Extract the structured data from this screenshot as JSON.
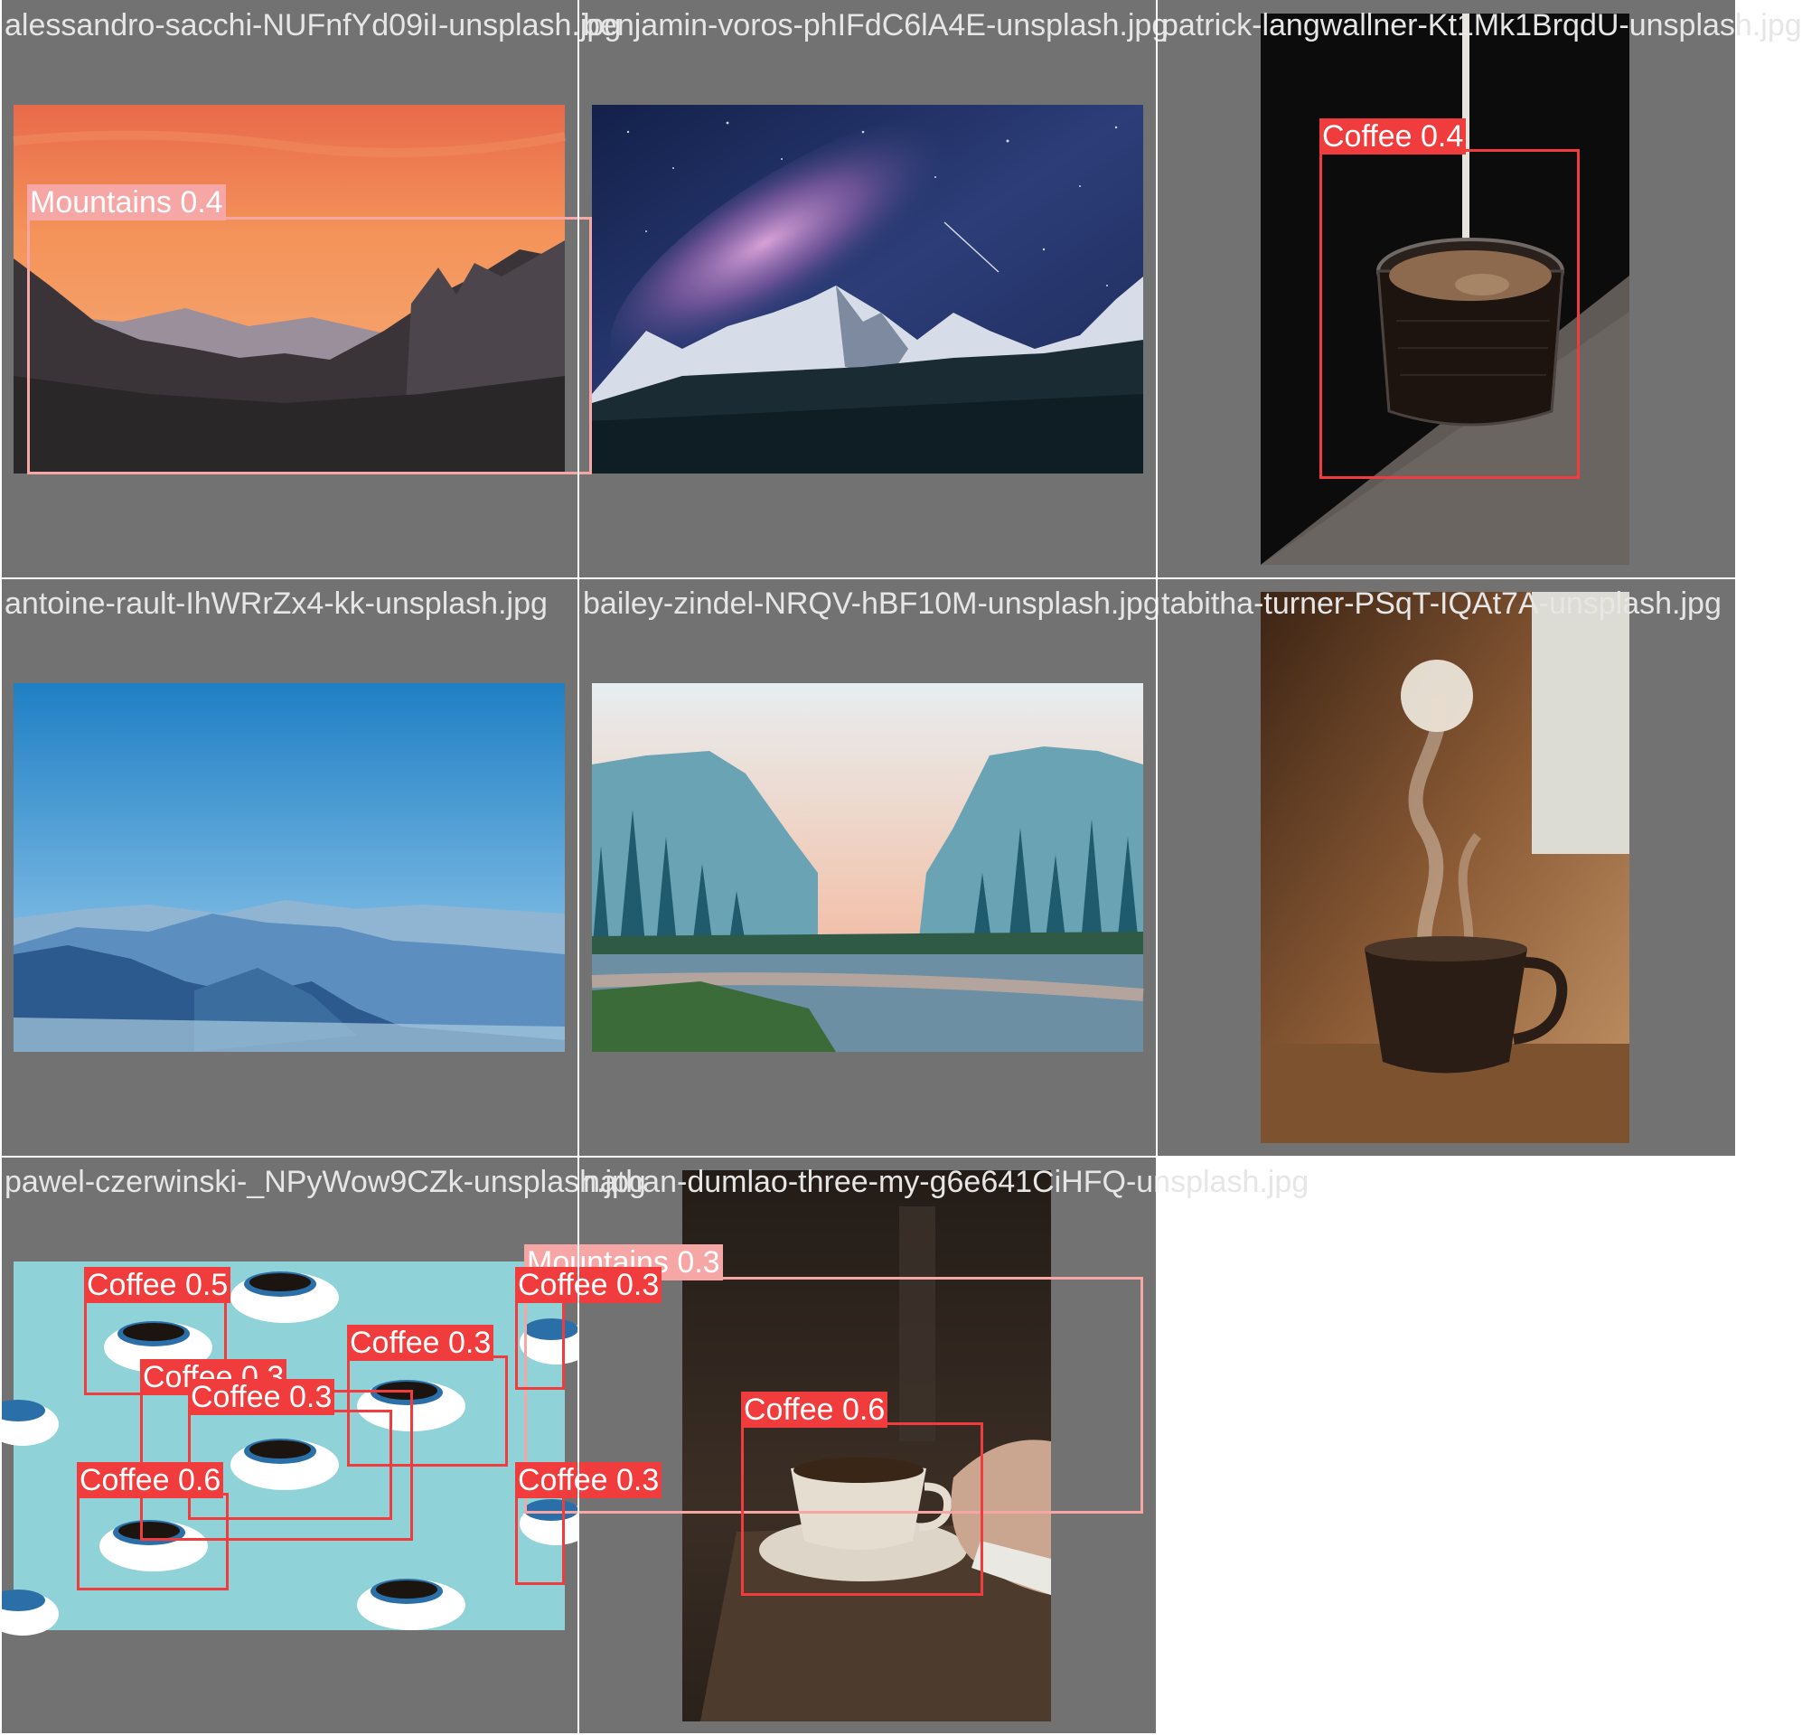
{
  "tiles": [
    {
      "filename": "alessandro-sacchi-NUFnfYd09iI-unsplash.jpg"
    },
    {
      "filename": "benjamin-voros-phIFdC6lA4E-unsplash.jpg"
    },
    {
      "filename": "patrick-langwallner-Kt1Mk1BrqdU-unsplash.jpg"
    },
    {
      "filename": "antoine-rault-IhWRrZx4-kk-unsplash.jpg"
    },
    {
      "filename": "bailey-zindel-NRQV-hBF10M-unsplash.jpg"
    },
    {
      "filename": "tabitha-turner-PSqT-IQAt7A-unsplash.jpg"
    },
    {
      "filename": "pawel-czerwinski-_NPyWow9CZk-unsplash.jpg"
    },
    {
      "filename": "nathan-dumlao-three-my-g6e641CiHFQ-unsplash.jpg"
    }
  ],
  "detections": {
    "mountains_1": "Mountains 0.4",
    "coffee_tile3": "Coffee 0.4",
    "mountains_2": "Mountains 0.3",
    "coffee_a": "Coffee 0.5",
    "coffee_b": "Coffee 0.3",
    "coffee_c": "Coffee 0.3",
    "coffee_d": "Coffee 0.3",
    "coffee_e": "Coffee 0.3",
    "coffee_f": "Coffee 0.6",
    "coffee_g": "Coffee 0.3",
    "coffee_h": "Coffee 0.6"
  },
  "colors": {
    "tile_background": "#727272",
    "mountains_box": "#f7a6a6",
    "coffee_box": "#f03c3c",
    "tile_label_text": "#e6e6e6"
  }
}
